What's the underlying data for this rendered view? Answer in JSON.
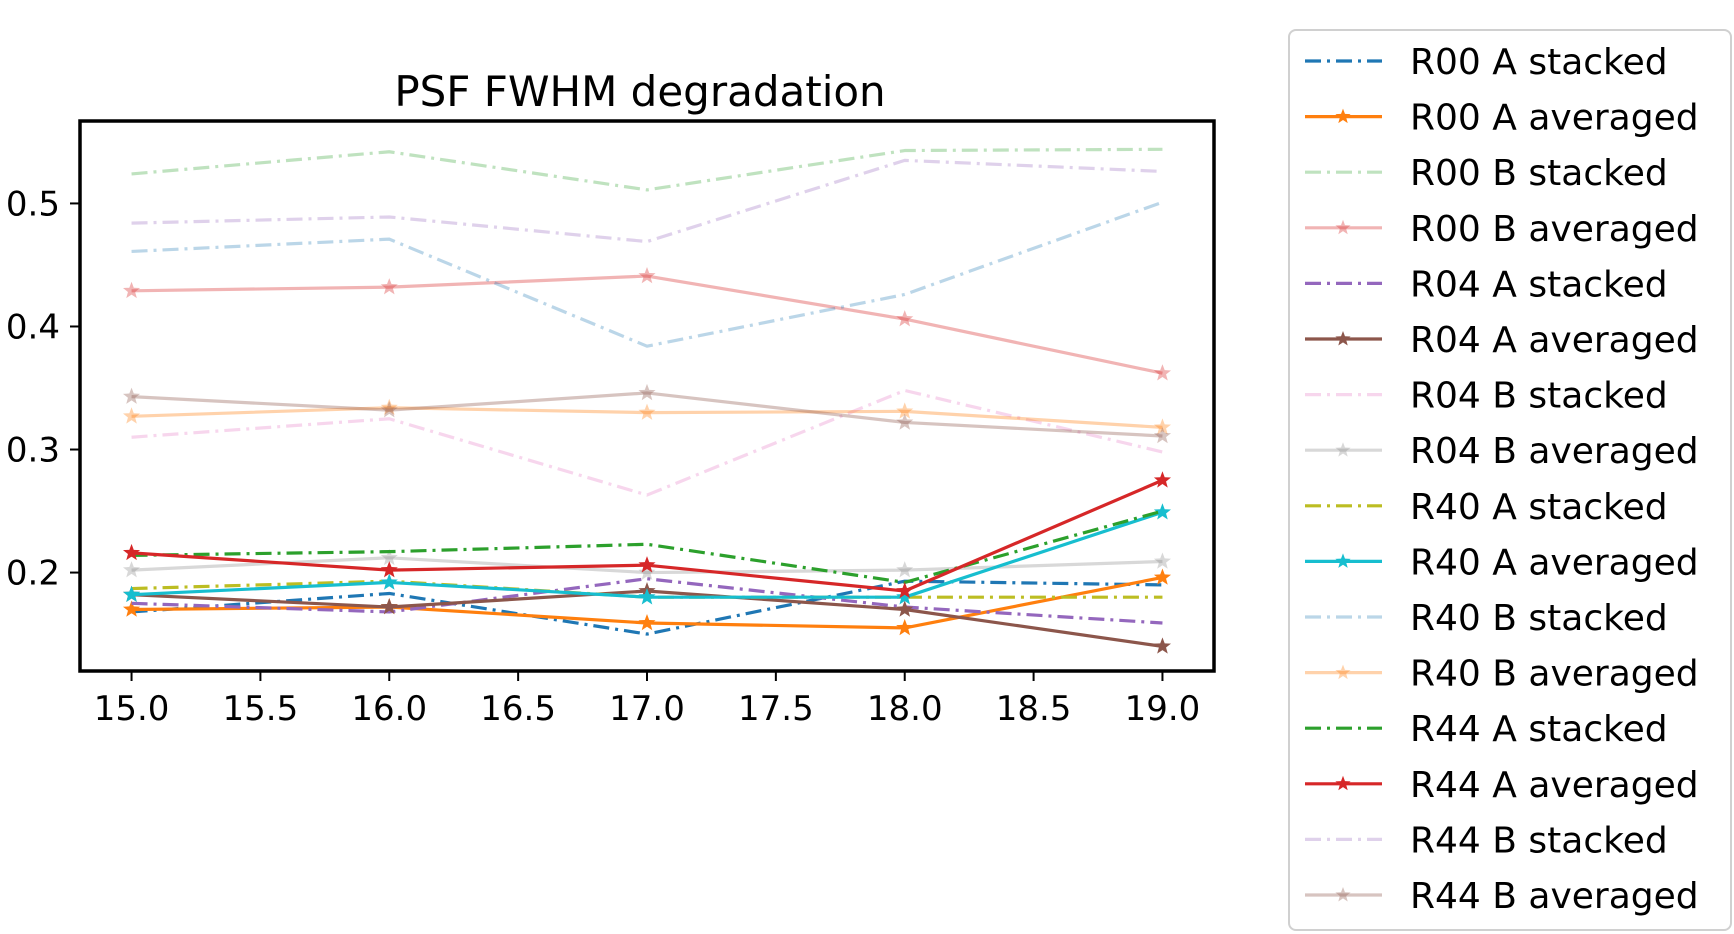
{
  "chart_data": {
    "type": "line",
    "title": "PSF FWHM degradation",
    "xlabel": "",
    "ylabel": "",
    "x": [
      15.0,
      16.0,
      17.0,
      18.0,
      19.0
    ],
    "xlim": [
      14.8,
      19.2
    ],
    "ylim": [
      0.12,
      0.567
    ],
    "xticks": [
      "15.0",
      "15.5",
      "16.0",
      "16.5",
      "17.0",
      "17.5",
      "18.0",
      "18.5",
      "19.0"
    ],
    "xtick_values": [
      15.0,
      15.5,
      16.0,
      16.5,
      17.0,
      17.5,
      18.0,
      18.5,
      19.0
    ],
    "yticks": [
      "0.2",
      "0.3",
      "0.4",
      "0.5"
    ],
    "ytick_values": [
      0.2,
      0.3,
      0.4,
      0.5
    ],
    "grid": false,
    "legend_position": "outside-right",
    "series": [
      {
        "name": "R00 A stacked",
        "color": "#1f77b4",
        "style": "dashdot",
        "marker": "none",
        "alpha": 1.0,
        "values": [
          0.168,
          0.183,
          0.15,
          0.193,
          0.19
        ]
      },
      {
        "name": "R00 A averaged",
        "color": "#ff7f0e",
        "style": "solid",
        "marker": "star",
        "alpha": 1.0,
        "values": [
          0.17,
          0.172,
          0.159,
          0.155,
          0.196
        ]
      },
      {
        "name": "R00 B stacked",
        "color": "#2ca02c",
        "style": "dashdot",
        "marker": "none",
        "alpha": 0.3,
        "values": [
          0.524,
          0.542,
          0.511,
          0.543,
          0.544
        ]
      },
      {
        "name": "R00 B averaged",
        "color": "#d62728",
        "style": "solid",
        "marker": "star",
        "alpha": 0.35,
        "values": [
          0.429,
          0.432,
          0.441,
          0.406,
          0.362
        ]
      },
      {
        "name": "R04 A stacked",
        "color": "#9467bd",
        "style": "dashdot",
        "marker": "none",
        "alpha": 1.0,
        "values": [
          0.175,
          0.168,
          0.195,
          0.172,
          0.159
        ]
      },
      {
        "name": "R04 A averaged",
        "color": "#8c564b",
        "style": "solid",
        "marker": "star",
        "alpha": 1.0,
        "values": [
          0.182,
          0.172,
          0.185,
          0.17,
          0.14
        ]
      },
      {
        "name": "R04 B stacked",
        "color": "#e377c2",
        "style": "dashdot",
        "marker": "none",
        "alpha": 0.3,
        "values": [
          0.31,
          0.325,
          0.263,
          0.348,
          0.298
        ]
      },
      {
        "name": "R04 B averaged",
        "color": "#7f7f7f",
        "style": "solid",
        "marker": "star",
        "alpha": 0.3,
        "values": [
          0.202,
          0.212,
          0.2,
          0.202,
          0.209
        ]
      },
      {
        "name": "R40 A stacked",
        "color": "#bcbd22",
        "style": "dashdot",
        "marker": "none",
        "alpha": 1.0,
        "values": [
          0.187,
          0.193,
          0.18,
          0.18,
          0.18
        ]
      },
      {
        "name": "R40 A averaged",
        "color": "#17becf",
        "style": "solid",
        "marker": "star",
        "alpha": 1.0,
        "values": [
          0.182,
          0.192,
          0.18,
          0.18,
          0.249
        ]
      },
      {
        "name": "R40 B stacked",
        "color": "#1f77b4",
        "style": "dashdot",
        "marker": "none",
        "alpha": 0.3,
        "values": [
          0.461,
          0.471,
          0.384,
          0.426,
          0.501
        ]
      },
      {
        "name": "R40 B averaged",
        "color": "#ff7f0e",
        "style": "solid",
        "marker": "star",
        "alpha": 0.35,
        "values": [
          0.327,
          0.334,
          0.33,
          0.331,
          0.318
        ]
      },
      {
        "name": "R44 A stacked",
        "color": "#2ca02c",
        "style": "dashdot",
        "marker": "none",
        "alpha": 1.0,
        "values": [
          0.214,
          0.217,
          0.223,
          0.192,
          0.25
        ]
      },
      {
        "name": "R44 A averaged",
        "color": "#d62728",
        "style": "solid",
        "marker": "star",
        "alpha": 1.0,
        "values": [
          0.216,
          0.202,
          0.206,
          0.185,
          0.275
        ]
      },
      {
        "name": "R44 B stacked",
        "color": "#9467bd",
        "style": "dashdot",
        "marker": "none",
        "alpha": 0.3,
        "values": [
          0.484,
          0.489,
          0.469,
          0.535,
          0.526
        ]
      },
      {
        "name": "R44 B averaged",
        "color": "#8c564b",
        "style": "solid",
        "marker": "star",
        "alpha": 0.35,
        "values": [
          0.343,
          0.332,
          0.346,
          0.322,
          0.311
        ]
      }
    ]
  }
}
